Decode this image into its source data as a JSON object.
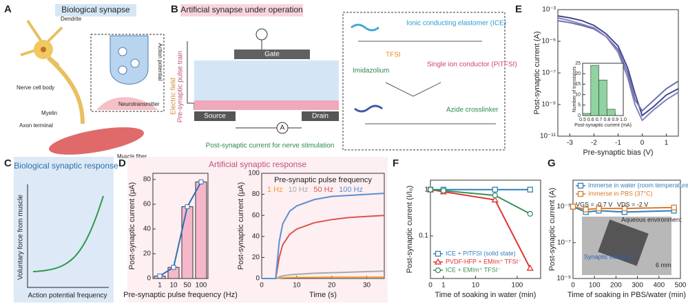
{
  "panel_labels": [
    "A",
    "B",
    "C",
    "D",
    "E",
    "F",
    "G"
  ],
  "panel_a": {
    "title": "Biological synapse",
    "dendrite": "Dendrite",
    "cell_body": "Nerve cell body",
    "myelin": "Myelin",
    "axon_terminal": "Axon terminal",
    "muscle": "Muscle fiber",
    "action_potential": "Action potential",
    "neurotransmitter": "Neurotransmitter"
  },
  "panel_b": {
    "title": "Artificial synapse under operation",
    "gate": "Gate",
    "source": "Source",
    "drain": "Drain",
    "pulse": "Pre-synaptic pulse train",
    "field": "Electric field",
    "ammeter": "A",
    "current": "Post-synaptic current for nerve stimulation",
    "ice": "Ionic conducting elastomer (ICE)",
    "tfsi": "TFSI",
    "imidazolium": "Imidazolium",
    "pitfsi": "Single ion conductor (PiTFSI)",
    "azide": "Azide crosslinker"
  },
  "panel_c": {
    "title": "Biological synaptic response",
    "ylabel": "Voluntary force from muscle",
    "xlabel": "Action potential frequency"
  },
  "panel_d": {
    "title": "Artificial synaptic response"
  },
  "chart_data": [
    {
      "type": "bar",
      "categories": [
        "1",
        "10",
        "50",
        "100"
      ],
      "values": [
        2,
        9,
        58,
        78
      ],
      "color": "#f5b8cb",
      "line_color": "#2f6fb0",
      "ylim": [
        0,
        85
      ],
      "yticks": [
        0,
        20,
        40,
        60,
        80
      ],
      "xlabel": "Pre-synaptic pulse frequency (Hz)",
      "ylabel": "Post-synaptic current (μA)"
    },
    {
      "type": "line",
      "title": "Pre-synaptic pulse frequency",
      "legend": "top",
      "x": [
        0,
        4,
        5,
        6,
        8,
        10,
        15,
        20,
        25,
        30,
        35
      ],
      "xlim": [
        0,
        35
      ],
      "xticks": [
        0,
        10,
        20,
        30
      ],
      "ylim": [
        0,
        100
      ],
      "yticks": [
        0,
        20,
        40,
        60,
        80,
        100
      ],
      "xlabel": "Time (s)",
      "ylabel": "Post-synaptic current (μA)",
      "series": [
        {
          "name": "1 Hz",
          "color": "#f0a030",
          "values": [
            0,
            0,
            0.5,
            0.7,
            0.9,
            1,
            1.1,
            1.2,
            1.2,
            1.3,
            1.3
          ]
        },
        {
          "name": "10 Hz",
          "color": "#a8a8a8",
          "values": [
            0,
            0,
            1.5,
            2.5,
            3.5,
            4,
            5,
            5.5,
            6,
            6.5,
            7
          ]
        },
        {
          "name": "50 Hz",
          "color": "#d9534f",
          "values": [
            0,
            0,
            20,
            32,
            42,
            47,
            53,
            56,
            58,
            59,
            60
          ]
        },
        {
          "name": "100 Hz",
          "color": "#5b8fd0",
          "values": [
            0,
            0,
            35,
            52,
            64,
            69,
            75,
            78,
            79,
            80,
            81
          ]
        }
      ]
    },
    {
      "type": "line",
      "x": [
        -3.5,
        -3,
        -2.5,
        -2,
        -1.5,
        -1,
        -0.6,
        -0.3,
        0,
        0.5,
        1,
        1.5
      ],
      "xlim": [
        -3.5,
        1.5
      ],
      "xticks": [
        -3,
        -2,
        -1,
        0,
        1
      ],
      "yscale": "log",
      "ylim": [
        1e-11,
        0.001
      ],
      "yticks": [
        {
          "value": 1e-11,
          "label": "10⁻¹¹"
        },
        {
          "value": 1e-09,
          "label": "10⁻⁹"
        },
        {
          "value": 1e-07,
          "label": "10⁻⁷"
        },
        {
          "value": 1e-05,
          "label": "10⁻⁵"
        },
        {
          "value": 0.001,
          "label": "10⁻³"
        }
      ],
      "xlabel": "Pre-synaptic bias (V)",
      "ylabel": "Post-synaptic current (A)",
      "series": [
        {
          "color": "#3b4a8c",
          "values": [
            0.0004,
            0.0003,
            0.0002,
            0.0001,
            3e-05,
            5e-06,
            2e-07,
            5e-09,
            2e-10,
            8e-10,
            4e-09,
            1e-08
          ]
        },
        {
          "color": "#6a6fa8",
          "values": [
            0.0002,
            0.00015,
            0.0001,
            6e-05,
            2e-05,
            3e-06,
            1e-07,
            2e-09,
            4e-10,
            2e-09,
            1e-08,
            3e-08
          ]
        },
        {
          "color": "#8a7db8",
          "values": [
            0.0003,
            0.0002,
            0.00012,
            7e-05,
            2e-05,
            2e-06,
            5e-08,
            1e-09,
            1e-10,
            5e-10,
            2e-09,
            6e-09
          ]
        }
      ]
    },
    {
      "type": "histogram",
      "bins": [
        0.5,
        0.6,
        0.7,
        0.8,
        0.9,
        1.0
      ],
      "counts": [
        1,
        24,
        17,
        3,
        0
      ],
      "color": "#8fd3a0",
      "xlim": [
        0.5,
        1.0
      ],
      "xticks": [
        0.5,
        0.6,
        0.7,
        0.8,
        0.9,
        {
          "value": 1,
          "label": "1.0"
        }
      ],
      "ylim": [
        0,
        25
      ],
      "yticks": [
        0,
        5,
        10,
        15,
        20,
        25
      ],
      "xlabel": "Post-synaptic current (mA)",
      "ylabel": "Number of transistors"
    },
    {
      "type": "line",
      "legend": "lower left",
      "x": [
        0,
        1,
        30,
        200
      ],
      "xscale": "symlog",
      "xlim": [
        0,
        350
      ],
      "xticks": [
        0,
        1,
        10,
        100
      ],
      "yscale": "log",
      "ylim": [
        0.012,
        1.6
      ],
      "yticks": [
        0.1,
        1
      ],
      "xlabel": "Time of soaking in water (min)",
      "ylabel": "Post-synaptic current (I/I₀)",
      "series": [
        {
          "name": "ICE + PiTFSI (solid state)",
          "color": "#2e7fb8",
          "marker": "square",
          "values": [
            1,
            1,
            1,
            1
          ]
        },
        {
          "name": "PVDF-HFP + EMIm⁺ TFSI⁻",
          "color": "#e03030",
          "marker": "triangle",
          "values": [
            1,
            0.9,
            0.6,
            0.02
          ]
        },
        {
          "name": "ICE + EMIm⁺ TFSI⁻",
          "color": "#3a8f5a",
          "marker": "circle",
          "values": [
            1,
            0.95,
            0.75,
            0.3
          ]
        }
      ]
    },
    {
      "type": "line",
      "legend": "upper left",
      "x": [
        0,
        60,
        120,
        240,
        470
      ],
      "xlim": [
        0,
        500
      ],
      "xticks": [
        0,
        100,
        200,
        300,
        400,
        500
      ],
      "yscale": "log",
      "ylim": [
        1e-09,
        0.0003
      ],
      "yticks": [
        {
          "value": 1e-09,
          "label": "10⁻⁹"
        },
        {
          "value": 1e-07,
          "label": "10⁻⁷"
        },
        {
          "value": 1e-05,
          "label": "10⁻⁵"
        }
      ],
      "xlabel": "Time of soaking in PBS/water (min)",
      "ylabel": "Post-synaptic current (A)",
      "annotations": [
        "VGS = -0.7 V",
        "VDS = -2 V",
        "Aqueous environment",
        "Synaptic transistor",
        "6 mm"
      ],
      "series": [
        {
          "name": "Immerse in water (room temperature)",
          "color": "#2e7fb8",
          "marker": "square",
          "values": [
            1e-05,
            5e-06,
            6e-06,
            5e-06,
            6e-06
          ]
        },
        {
          "name": "Immerse in PBS (37°C)",
          "color": "#d87a2a",
          "marker": "square",
          "values": [
            1e-05,
            7e-06,
            8e-06,
            8e-06,
            9e-06
          ]
        }
      ]
    }
  ]
}
